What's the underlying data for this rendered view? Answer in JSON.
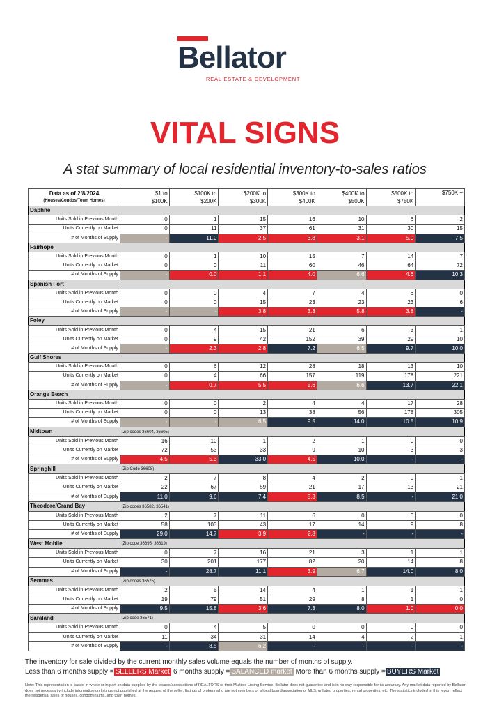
{
  "header": {
    "logo": "Bellator",
    "logo_tagline": "REAL ESTATE & DEVELOPMENT",
    "title": "VITAL SIGNS",
    "subtitle": "A stat summary of local residential inventory-to-sales ratios"
  },
  "table": {
    "as_of": "Data as of 2/8/2024",
    "property_types": "(Houses/Condos/Town Homes)",
    "columns": [
      [
        "$1 to",
        "$100K"
      ],
      [
        "$100K to",
        "$200K"
      ],
      [
        "$200K to",
        "$300K"
      ],
      [
        "$300K to",
        "$400K"
      ],
      [
        "$400K to",
        "$500K"
      ],
      [
        "$500K to",
        "$750K"
      ],
      [
        "$750K +"
      ]
    ],
    "row_labels": [
      "Units Sold in Previous Month",
      "Units Currently on Market",
      "# of Months of Supply"
    ],
    "sections": [
      {
        "name": "Daphne",
        "sold": [
          0,
          1,
          15,
          16,
          10,
          6,
          2
        ],
        "market": [
          0,
          11,
          37,
          61,
          31,
          30,
          15
        ],
        "supply": [
          "-",
          "11.0",
          "2.5",
          "3.8",
          "3.1",
          "5.0",
          "7.5"
        ],
        "supply_colors": [
          "#b3aaa1",
          "#243246",
          "#e3262d",
          "#e3262d",
          "#e3262d",
          "#e3262d",
          "#243246"
        ]
      },
      {
        "name": "Fairhope",
        "sold": [
          0,
          1,
          10,
          15,
          7,
          14,
          7
        ],
        "market": [
          0,
          0,
          11,
          60,
          46,
          64,
          72
        ],
        "supply": [
          "-",
          "0.0",
          "1.1",
          "4.0",
          "6.6",
          "4.6",
          "10.3"
        ],
        "supply_colors": [
          "#b3aaa1",
          "#e3262d",
          "#e3262d",
          "#e3262d",
          "#b3aaa1",
          "#e3262d",
          "#243246"
        ]
      },
      {
        "name": "Spanish Fort",
        "sold": [
          0,
          0,
          4,
          7,
          4,
          6,
          0
        ],
        "market": [
          0,
          0,
          15,
          23,
          23,
          23,
          6
        ],
        "supply": [
          "-",
          "-",
          "3.8",
          "3.3",
          "5.8",
          "3.8",
          "-"
        ],
        "supply_colors": [
          "#b3aaa1",
          "#b3aaa1",
          "#e3262d",
          "#e3262d",
          "#e3262d",
          "#e3262d",
          "#243246"
        ]
      },
      {
        "name": "Foley",
        "sold": [
          0,
          4,
          15,
          21,
          6,
          3,
          1
        ],
        "market": [
          0,
          9,
          42,
          152,
          39,
          29,
          10
        ],
        "supply": [
          "-",
          "2.3",
          "2.8",
          "7.2",
          "6.5",
          "9.7",
          "10.0"
        ],
        "supply_colors": [
          "#b3aaa1",
          "#e3262d",
          "#e3262d",
          "#243246",
          "#b3aaa1",
          "#243246",
          "#243246"
        ]
      },
      {
        "name": "Gulf Shores",
        "sold": [
          0,
          6,
          12,
          28,
          18,
          13,
          10
        ],
        "market": [
          0,
          4,
          66,
          157,
          119,
          178,
          221
        ],
        "supply": [
          "-",
          "0.7",
          "5.5",
          "5.6",
          "6.6",
          "13.7",
          "22.1"
        ],
        "supply_colors": [
          "#b3aaa1",
          "#e3262d",
          "#e3262d",
          "#e3262d",
          "#b3aaa1",
          "#243246",
          "#243246"
        ]
      },
      {
        "name": "Orange Beach",
        "sold": [
          0,
          0,
          2,
          4,
          4,
          17,
          28
        ],
        "market": [
          0,
          0,
          13,
          38,
          56,
          178,
          305
        ],
        "supply": [
          "-",
          "-",
          "6.5",
          "9.5",
          "14.0",
          "10.5",
          "10.9"
        ],
        "supply_colors": [
          "#b3aaa1",
          "#b3aaa1",
          "#b3aaa1",
          "#243246",
          "#243246",
          "#243246",
          "#243246"
        ]
      },
      {
        "name": "Midtown",
        "note": "(Zip codes 36604, 36605)",
        "sold": [
          16,
          10,
          1,
          2,
          1,
          0,
          0
        ],
        "market": [
          72,
          53,
          33,
          9,
          10,
          3,
          3
        ],
        "supply": [
          "4.5",
          "5.3",
          "33.0",
          "4.5",
          "10.0",
          "-",
          "-"
        ],
        "supply_colors": [
          "#e3262d",
          "#e3262d",
          "#243246",
          "#e3262d",
          "#243246",
          "#243246",
          "#243246"
        ]
      },
      {
        "name": "Springhill",
        "note": "(Zip Code 36608)",
        "sold": [
          2,
          7,
          8,
          4,
          2,
          0,
          1
        ],
        "market": [
          22,
          67,
          59,
          21,
          17,
          13,
          21
        ],
        "supply": [
          "11.0",
          "9.6",
          "7.4",
          "5.3",
          "8.5",
          "-",
          "21.0"
        ],
        "supply_colors": [
          "#243246",
          "#243246",
          "#243246",
          "#e3262d",
          "#243246",
          "#243246",
          "#243246"
        ]
      },
      {
        "name": "Theodore/Grand Bay",
        "note": "(Zip codes 36582, 36541)",
        "sold": [
          2,
          7,
          11,
          6,
          0,
          0,
          0
        ],
        "market": [
          58,
          103,
          43,
          17,
          14,
          9,
          8
        ],
        "supply": [
          "29.0",
          "14.7",
          "3.9",
          "2.8",
          "-",
          "-",
          "-"
        ],
        "supply_colors": [
          "#243246",
          "#243246",
          "#e3262d",
          "#e3262d",
          "#243246",
          "#243246",
          "#243246"
        ]
      },
      {
        "name": "West Mobile",
        "note": "(Zip code 36695, 36619)",
        "sold": [
          0,
          7,
          16,
          21,
          3,
          1,
          1
        ],
        "market": [
          30,
          201,
          177,
          82,
          20,
          14,
          8
        ],
        "supply": [
          "-",
          "28.7",
          "11.1",
          "3.9",
          "6.7",
          "14.0",
          "8.0"
        ],
        "supply_colors": [
          "#243246",
          "#243246",
          "#243246",
          "#e3262d",
          "#b3aaa1",
          "#243246",
          "#243246"
        ]
      },
      {
        "name": "Semmes",
        "note": "(Zip codes 36575)",
        "sold": [
          2,
          5,
          14,
          4,
          1,
          1,
          1
        ],
        "market": [
          19,
          79,
          51,
          29,
          8,
          1,
          0
        ],
        "supply": [
          "9.5",
          "15.8",
          "3.6",
          "7.3",
          "8.0",
          "1.0",
          "0.0"
        ],
        "supply_colors": [
          "#243246",
          "#243246",
          "#e3262d",
          "#243246",
          "#243246",
          "#e3262d",
          "#e3262d"
        ]
      },
      {
        "name": "Saraland",
        "note": "(Zip code 36571)",
        "sold": [
          0,
          4,
          5,
          0,
          0,
          0,
          0
        ],
        "market": [
          11,
          34,
          31,
          14,
          4,
          2,
          1
        ],
        "supply": [
          "-",
          "8.5",
          "6.2",
          "-",
          "-",
          "-",
          "-"
        ],
        "supply_colors": [
          "#243246",
          "#243246",
          "#b3aaa1",
          "#243246",
          "#243246",
          "#243246",
          "#243246"
        ]
      }
    ]
  },
  "legend": {
    "explanation": "The inventory for sale divided by the current monthly sales volume equals the number of months of supply.",
    "items": [
      {
        "prefix": "Less than 6 months supply =",
        "label": "SELLERS Market",
        "color": "#e3262d"
      },
      {
        "prefix": "6 months supply =",
        "label": "BALANCED market",
        "color": "#b3aaa1"
      },
      {
        "prefix": "More than 6 months supply =",
        "label": "BUYERS Market",
        "color": "#243246"
      }
    ]
  },
  "note": "Note: This representation is based in whole or in part on data supplied by the boards/associations of REALTORS or their Multiple Listing Service. Bellator does not guarantee and is in no way responsible for its accuracy. Any market data reported by Bellator does not necessarily include information on listings not published at the request of the seller, listings of brokers who are not members of a local board/association or MLS, unlisted properties, rental properties, etc. The statistics included in this report reflect the residential sales of houses, condominiums, and town homes."
}
